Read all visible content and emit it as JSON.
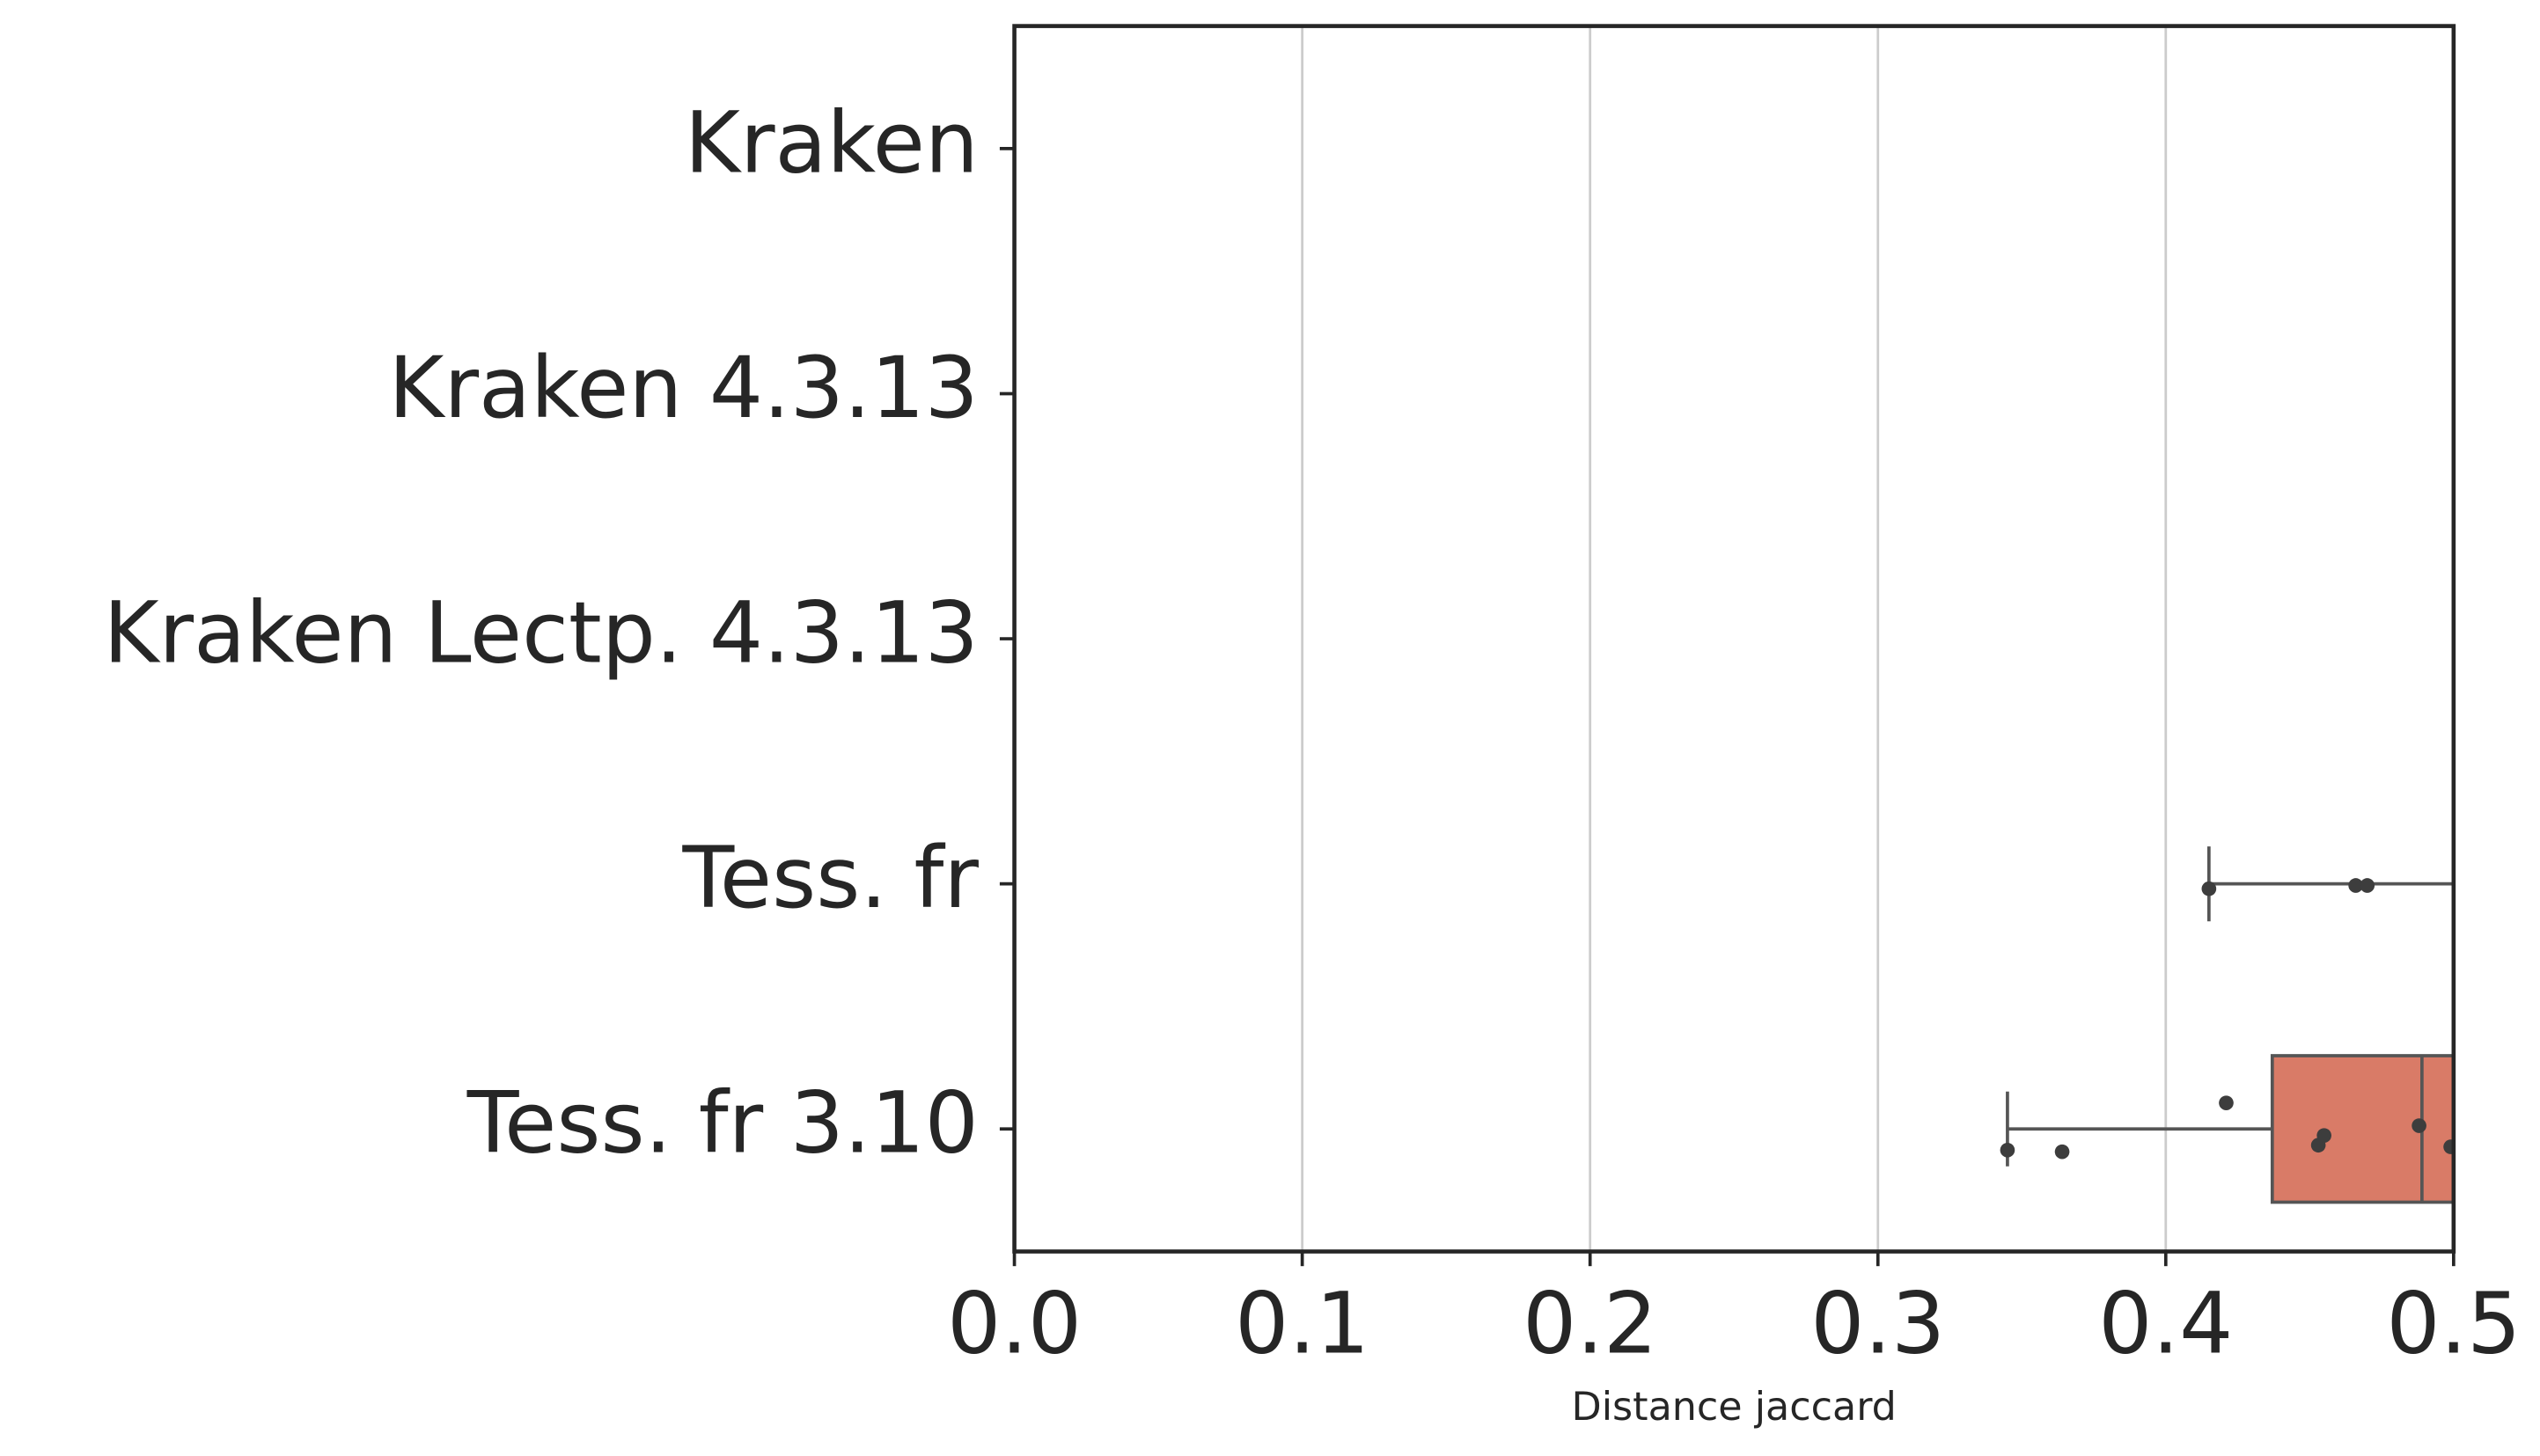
{
  "chart_data": {
    "type": "boxplot",
    "orientation": "horizontal",
    "categories": [
      "Kraken",
      "Kraken 4.3.13",
      "Kraken Lectp. 4.3.13",
      "Tess. fr",
      "Tess. fr 3.10"
    ],
    "whisker_low": [
      null,
      null,
      null,
      0.415,
      0.345
    ],
    "q1": [
      null,
      null,
      null,
      null,
      0.437
    ],
    "median": [
      null,
      null,
      null,
      null,
      0.489
    ],
    "points": [
      [],
      [],
      [],
      [
        0.415,
        0.466,
        0.47
      ],
      [
        0.345,
        0.364,
        0.421,
        0.453,
        0.455,
        0.488,
        0.499
      ]
    ],
    "color": "#d97b67",
    "x_label": "Distance jaccard",
    "xlim": [
      0,
      0.5
    ],
    "xticks": [
      {
        "value": 0,
        "label": "0.0"
      },
      0.1,
      0.2,
      0.3,
      0.4,
      0.5
    ],
    "grid": true
  }
}
